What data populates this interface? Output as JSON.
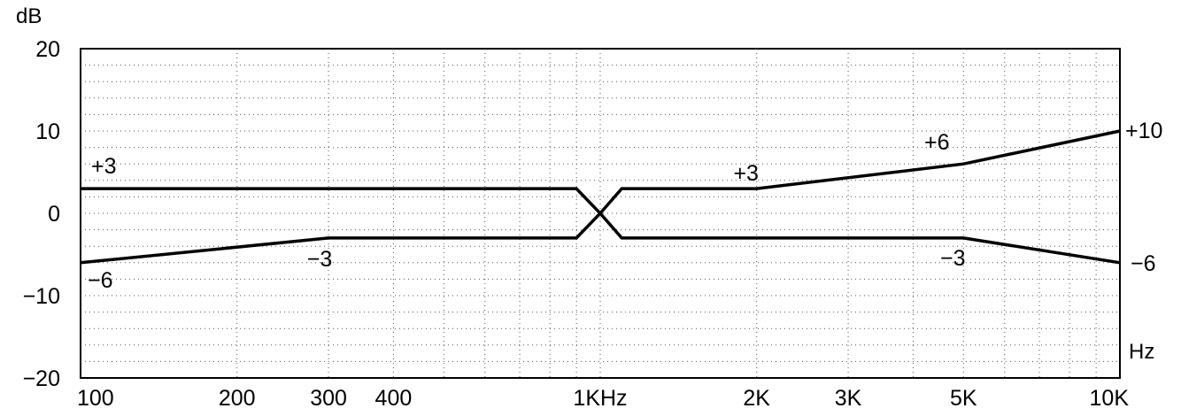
{
  "chart_data": {
    "type": "line",
    "xscale": "log",
    "xlim": [
      100,
      10000
    ],
    "ylim": [
      -20,
      20
    ],
    "grid": true,
    "ylabel": "dB",
    "xlabel": "Hz",
    "x_ticks": [
      {
        "value": 100,
        "label": "100"
      },
      {
        "value": 200,
        "label": "200"
      },
      {
        "value": 300,
        "label": "300"
      },
      {
        "value": 400,
        "label": "400"
      },
      {
        "value": 1000,
        "label": "1KHz"
      },
      {
        "value": 2000,
        "label": "2K"
      },
      {
        "value": 3000,
        "label": "3K"
      },
      {
        "value": 5000,
        "label": "5K"
      },
      {
        "value": 10000,
        "label": "10K"
      }
    ],
    "y_ticks": [
      {
        "value": 20,
        "label": "20"
      },
      {
        "value": 10,
        "label": "10"
      },
      {
        "value": 0,
        "label": "0"
      },
      {
        "value": -10,
        "label": "−10"
      },
      {
        "value": -20,
        "label": "−20"
      }
    ],
    "series": [
      {
        "color": "#000000",
        "points": [
          {
            "x": 100,
            "y": 3
          },
          {
            "x": 900,
            "y": 3
          },
          {
            "x": 1000,
            "y": 0
          },
          {
            "x": 1100,
            "y": -3
          },
          {
            "x": 5000,
            "y": -3
          },
          {
            "x": 10000,
            "y": -6
          }
        ]
      },
      {
        "color": "#000000",
        "points": [
          {
            "x": 100,
            "y": -6
          },
          {
            "x": 300,
            "y": -3
          },
          {
            "x": 900,
            "y": -3
          },
          {
            "x": 1000,
            "y": 0
          },
          {
            "x": 1100,
            "y": 3
          },
          {
            "x": 2000,
            "y": 3
          },
          {
            "x": 5000,
            "y": 6
          },
          {
            "x": 10000,
            "y": 10
          }
        ]
      }
    ],
    "annotations": [
      {
        "text": "+3",
        "x": 100,
        "y": 3,
        "anchor": "start",
        "dx": 12,
        "dy": -17
      },
      {
        "text": "−6",
        "x": 100,
        "y": -6,
        "anchor": "start",
        "dx": 8,
        "dy": 28
      },
      {
        "text": "−3",
        "x": 300,
        "y": -3,
        "anchor": "middle",
        "dx": -10,
        "dy": 32
      },
      {
        "text": "+3",
        "x": 2000,
        "y": 3,
        "anchor": "middle",
        "dx": -12,
        "dy": -9
      },
      {
        "text": "+6",
        "x": 5000,
        "y": 6,
        "anchor": "middle",
        "dx": -30,
        "dy": -16
      },
      {
        "text": "−3",
        "x": 5000,
        "y": -3,
        "anchor": "middle",
        "dx": -12,
        "dy": 31
      },
      {
        "text": "+10",
        "x": 10000,
        "y": 10,
        "anchor": "start",
        "dx": 6,
        "dy": 8
      },
      {
        "text": "−6",
        "x": 10000,
        "y": -6,
        "anchor": "start",
        "dx": 12,
        "dy": 9
      }
    ]
  }
}
